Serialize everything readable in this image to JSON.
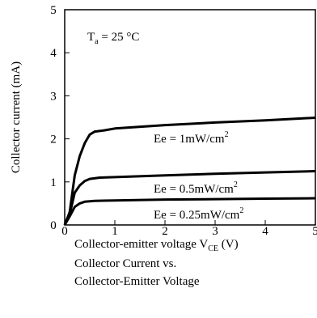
{
  "chart_data": {
    "type": "line",
    "title": "Collector Current vs. Collector-Emitter Voltage",
    "xlabel": "Collector-emitter voltage V",
    "xlabel_sub": "CE",
    "xlabel_unit": "(V)",
    "ylabel": "Collector current (mA)",
    "xlim": [
      0,
      5
    ],
    "ylim": [
      0,
      5
    ],
    "x_ticks": [
      "0",
      "1",
      "2",
      "3",
      "4",
      "5"
    ],
    "y_ticks": [
      "0",
      "1",
      "2",
      "3",
      "4",
      "5"
    ],
    "grid": false,
    "annotation": {
      "text_main": "T",
      "text_sub": "a",
      "text_rest": " = 25 °C"
    },
    "series": [
      {
        "name": "Ee = 1mW/cm2",
        "label_main": "Ee = 1mW/cm",
        "label_sup": "2",
        "points": [
          [
            0,
            0
          ],
          [
            0.1,
            0.3
          ],
          [
            0.2,
            1.15
          ],
          [
            0.3,
            1.6
          ],
          [
            0.4,
            1.9
          ],
          [
            0.5,
            2.1
          ],
          [
            0.6,
            2.17
          ],
          [
            0.8,
            2.2
          ],
          [
            1.0,
            2.24
          ],
          [
            2.0,
            2.32
          ],
          [
            3.0,
            2.38
          ],
          [
            4.0,
            2.43
          ],
          [
            5.0,
            2.49
          ]
        ]
      },
      {
        "name": "Ee = 0.5mW/cm2",
        "label_main": "Ee = 0.5mW/cm",
        "label_sup": "2",
        "points": [
          [
            0,
            0
          ],
          [
            0.1,
            0.25
          ],
          [
            0.2,
            0.75
          ],
          [
            0.3,
            0.92
          ],
          [
            0.4,
            1.02
          ],
          [
            0.5,
            1.07
          ],
          [
            0.7,
            1.1
          ],
          [
            1.0,
            1.11
          ],
          [
            2.0,
            1.15
          ],
          [
            3.0,
            1.19
          ],
          [
            4.0,
            1.22
          ],
          [
            5.0,
            1.25
          ]
        ]
      },
      {
        "name": "Ee = 0.25mW/cm2",
        "label_main": "Ee = 0.25mW/cm",
        "label_sup": "2",
        "points": [
          [
            0,
            0
          ],
          [
            0.1,
            0.2
          ],
          [
            0.2,
            0.42
          ],
          [
            0.3,
            0.5
          ],
          [
            0.4,
            0.54
          ],
          [
            0.6,
            0.56
          ],
          [
            1.0,
            0.57
          ],
          [
            2.0,
            0.59
          ],
          [
            3.0,
            0.6
          ],
          [
            4.0,
            0.61
          ],
          [
            5.0,
            0.62
          ]
        ]
      }
    ]
  },
  "caption": {
    "line1": "Collector Current vs.",
    "line2": "Collector-Emitter Voltage"
  }
}
